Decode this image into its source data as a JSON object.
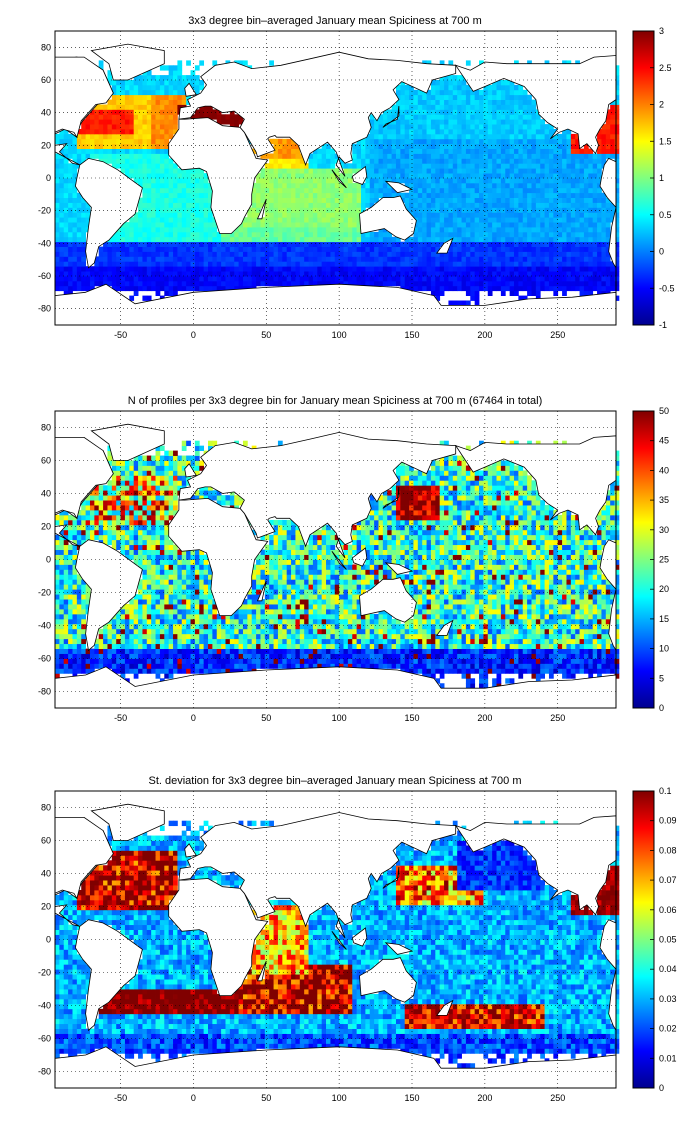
{
  "panels": [
    {
      "id": "spiciness",
      "title": "3x3 degree bin–averaged January mean Spiciness at 700 m",
      "xticks": [
        "-50",
        "0",
        "50",
        "100",
        "150",
        "200",
        "250"
      ],
      "yticks": [
        "80",
        "60",
        "40",
        "20",
        "0",
        "-20",
        "-40",
        "-60",
        "-80"
      ],
      "colorbar": {
        "min": -1,
        "max": 3,
        "ticks": [
          "3",
          "2.5",
          "2",
          "1.5",
          "1",
          "0.5",
          "0",
          "-0.5",
          "-1"
        ]
      }
    },
    {
      "id": "profile-count",
      "title": "N of profiles per 3x3 degree bin for January mean Spiciness at 700 m (67464 in total)",
      "xticks": [
        "-50",
        "0",
        "50",
        "100",
        "150",
        "200",
        "250"
      ],
      "yticks": [
        "80",
        "60",
        "40",
        "20",
        "0",
        "-20",
        "-40",
        "-60",
        "-80"
      ],
      "colorbar": {
        "min": 0,
        "max": 50,
        "ticks": [
          "50",
          "45",
          "40",
          "35",
          "30",
          "25",
          "20",
          "15",
          "10",
          "5",
          "0"
        ]
      }
    },
    {
      "id": "std-deviation",
      "title": "St. deviation for 3x3 degree bin–averaged January mean Spiciness at 700 m",
      "xticks": [
        "-50",
        "0",
        "50",
        "100",
        "150",
        "200",
        "250"
      ],
      "yticks": [
        "80",
        "60",
        "40",
        "20",
        "0",
        "-20",
        "-40",
        "-60",
        "-80"
      ],
      "colorbar": {
        "min": 0,
        "max": 0.1,
        "ticks": [
          "0.1",
          "0.09",
          "0.08",
          "0.07",
          "0.06",
          "0.05",
          "0.04",
          "0.03",
          "0.02",
          "0.01",
          "0"
        ]
      }
    }
  ],
  "colormap": "jet"
}
